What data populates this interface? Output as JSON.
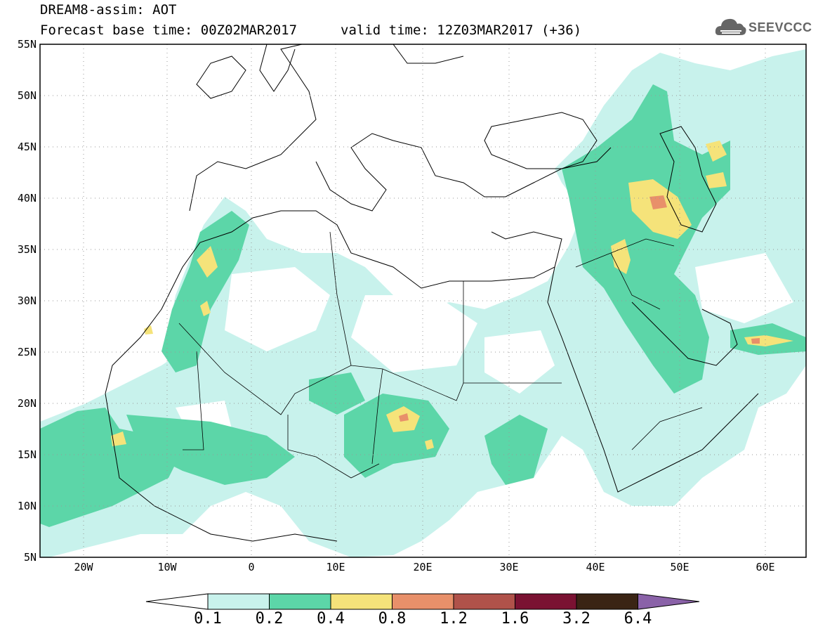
{
  "header": {
    "title": "DREAM8-assim: AOT",
    "base_time": "Forecast base time: 00Z02MAR2017",
    "valid_time": "valid time: 12Z03MAR2017 (+36)",
    "logo_text": "SEEVCCC"
  },
  "map": {
    "lat_labels": [
      "55N",
      "50N",
      "45N",
      "40N",
      "35N",
      "30N",
      "25N",
      "20N",
      "15N",
      "10N",
      "5N"
    ],
    "lon_labels": [
      "20W",
      "10W",
      "0",
      "10E",
      "20E",
      "30E",
      "40E",
      "50E",
      "60E"
    ]
  },
  "colorbar": {
    "labels": [
      "0.1",
      "0.2",
      "0.4",
      "0.8",
      "1.2",
      "1.6",
      "3.2",
      "6.4"
    ],
    "colors": [
      "#c8f2ec",
      "#5cd6a8",
      "#f5e37a",
      "#e8906a",
      "#b0524a",
      "#7a1232",
      "#3a2414",
      "#8a62a8"
    ]
  }
}
